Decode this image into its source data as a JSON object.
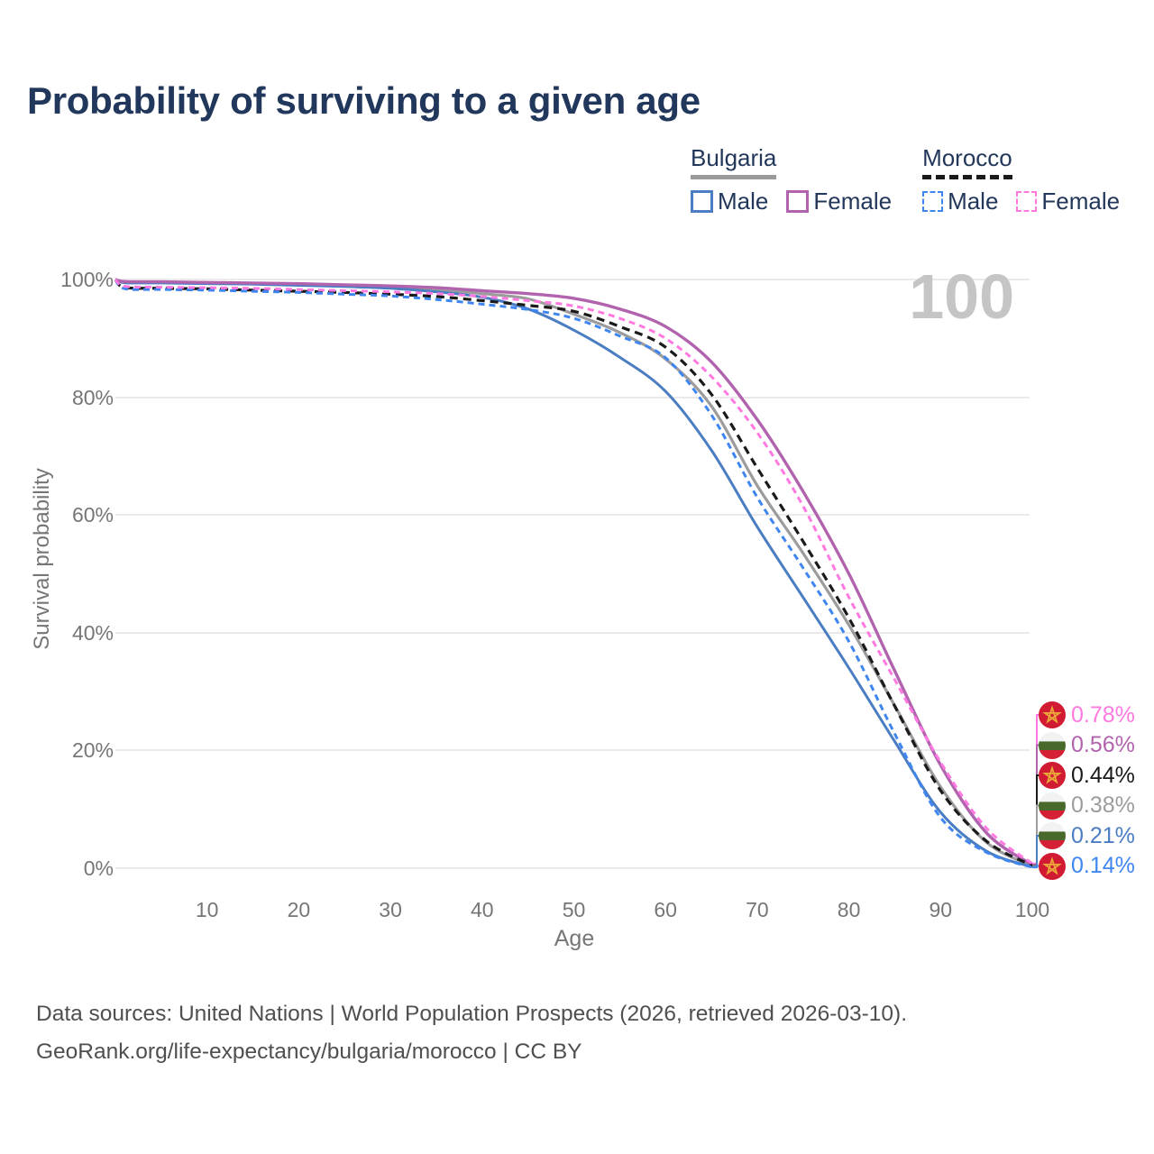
{
  "header": {
    "title": "Probability of surviving to a given age"
  },
  "legend": {
    "bulgaria": {
      "label": "Bulgaria",
      "male": "Male",
      "female": "Female",
      "underline_color": "#9a9a9a",
      "male_color": "#4a7dc2",
      "female_color": "#b163ae"
    },
    "morocco": {
      "label": "Morocco",
      "male": "Male",
      "female": "Female",
      "underline_color": "#1a1a1a",
      "male_color": "#3f86f0",
      "female_color": "#ff79e1"
    }
  },
  "chart_data": {
    "type": "line",
    "title": "Probability of surviving to a given age",
    "xlabel": "Age",
    "ylabel": "Survival probability",
    "xlim": [
      0,
      100
    ],
    "ylim": [
      0,
      100
    ],
    "grid": "horizontal",
    "watermark": "100",
    "x_ticks": [
      {
        "value": 10,
        "label": "10"
      },
      {
        "value": 20,
        "label": "20"
      },
      {
        "value": 30,
        "label": "30"
      },
      {
        "value": 40,
        "label": "40"
      },
      {
        "value": 50,
        "label": "50"
      },
      {
        "value": 60,
        "label": "60"
      },
      {
        "value": 70,
        "label": "70"
      },
      {
        "value": 80,
        "label": "80"
      },
      {
        "value": 90,
        "label": "90"
      },
      {
        "value": 100,
        "label": "100"
      }
    ],
    "y_ticks": [
      {
        "value": 0,
        "label": "0%"
      },
      {
        "value": 20,
        "label": "20%"
      },
      {
        "value": 40,
        "label": "40%"
      },
      {
        "value": 60,
        "label": "60%"
      },
      {
        "value": 80,
        "label": "80%"
      },
      {
        "value": 100,
        "label": "100%"
      }
    ],
    "x": [
      0,
      1,
      5,
      10,
      15,
      20,
      25,
      30,
      35,
      40,
      45,
      50,
      55,
      60,
      65,
      70,
      75,
      80,
      85,
      90,
      95,
      100
    ],
    "series": [
      {
        "id": "bulgaria-all",
        "name": "Bulgaria",
        "color": "#9c9c9c",
        "dash": null,
        "width": 3.2,
        "values": [
          100,
          99.55,
          99.5,
          99.4,
          99.3,
          99.2,
          99.0,
          98.7,
          98.3,
          97.6,
          96.7,
          94.1,
          91.0,
          86.5,
          78.5,
          65.0,
          53.5,
          41.3,
          27.6,
          13.8,
          4.4,
          0.38
        ]
      },
      {
        "id": "bulgaria-male",
        "name": "Bulgaria Male",
        "color": "#4a7dc2",
        "dash": null,
        "width": 3,
        "values": [
          100,
          99.45,
          99.4,
          99.3,
          99.2,
          99.0,
          98.8,
          98.5,
          97.9,
          97.0,
          95.0,
          91.4,
          86.8,
          81.0,
          71.0,
          58.0,
          46.0,
          34.0,
          21.5,
          9.5,
          2.9,
          0.21
        ]
      },
      {
        "id": "bulgaria-female",
        "name": "Bulgaria Female",
        "color": "#b163ae",
        "dash": null,
        "width": 3.4,
        "values": [
          100,
          99.65,
          99.6,
          99.5,
          99.4,
          99.3,
          99.1,
          98.9,
          98.6,
          98.1,
          97.6,
          96.8,
          95.0,
          92.0,
          86.0,
          76.2,
          64.0,
          50.0,
          33.5,
          17.5,
          6.0,
          0.56
        ]
      },
      {
        "id": "morocco-all",
        "name": "Morocco",
        "color": "#1a1a1a",
        "dash": "9 6",
        "width": 3.2,
        "values": [
          100,
          98.65,
          98.5,
          98.4,
          98.2,
          98.0,
          97.8,
          97.5,
          97.1,
          96.4,
          95.6,
          94.6,
          92.0,
          88.5,
          80.5,
          68.0,
          55.5,
          42.5,
          27.5,
          13.2,
          4.6,
          0.44
        ]
      },
      {
        "id": "morocco-male",
        "name": "Morocco Male",
        "color": "#3f86f0",
        "dash": "7 5",
        "width": 3,
        "values": [
          100,
          98.45,
          98.3,
          98.2,
          98.0,
          97.8,
          97.5,
          97.2,
          96.6,
          95.8,
          94.9,
          93.4,
          90.4,
          86.7,
          77.0,
          63.0,
          51.0,
          38.5,
          22.8,
          8.6,
          2.7,
          0.14
        ]
      },
      {
        "id": "morocco-female",
        "name": "Morocco Female",
        "color": "#ff79e1",
        "dash": "7 5",
        "width": 3,
        "values": [
          100,
          98.85,
          98.7,
          98.6,
          98.5,
          98.3,
          98.1,
          97.9,
          97.6,
          97.1,
          96.4,
          95.5,
          93.4,
          90.0,
          83.5,
          74.0,
          61.5,
          46.0,
          32.0,
          18.0,
          6.8,
          0.78
        ]
      }
    ],
    "end_labels": [
      {
        "text": "0.78%",
        "value": 0.78,
        "color": "#ff79e1",
        "flag": "morocco",
        "series": "Morocco Female"
      },
      {
        "text": "0.56%",
        "value": 0.56,
        "color": "#b163ae",
        "flag": "bulgaria",
        "series": "Bulgaria Female"
      },
      {
        "text": "0.44%",
        "value": 0.44,
        "color": "#1a1a1a",
        "flag": "morocco",
        "series": "Morocco"
      },
      {
        "text": "0.38%",
        "value": 0.38,
        "color": "#9c9c9c",
        "flag": "bulgaria",
        "series": "Bulgaria"
      },
      {
        "text": "0.21%",
        "value": 0.21,
        "color": "#4a7dc2",
        "flag": "bulgaria",
        "series": "Bulgaria Male"
      },
      {
        "text": "0.14%",
        "value": 0.14,
        "color": "#3f86f0",
        "flag": "morocco",
        "series": "Morocco Male"
      }
    ]
  },
  "flags": {
    "morocco": {
      "bg": "#d01b33",
      "star": "#eda83a"
    },
    "bulgaria": {
      "white": "#f2f2f2",
      "green": "#49682c",
      "red": "#d51f35"
    }
  },
  "footer": {
    "line1": "Data sources: United Nations | World Population Prospects (2026, retrieved 2026-03-10).",
    "line2": "GeoRank.org/life-expectancy/bulgaria/morocco | CC BY"
  }
}
